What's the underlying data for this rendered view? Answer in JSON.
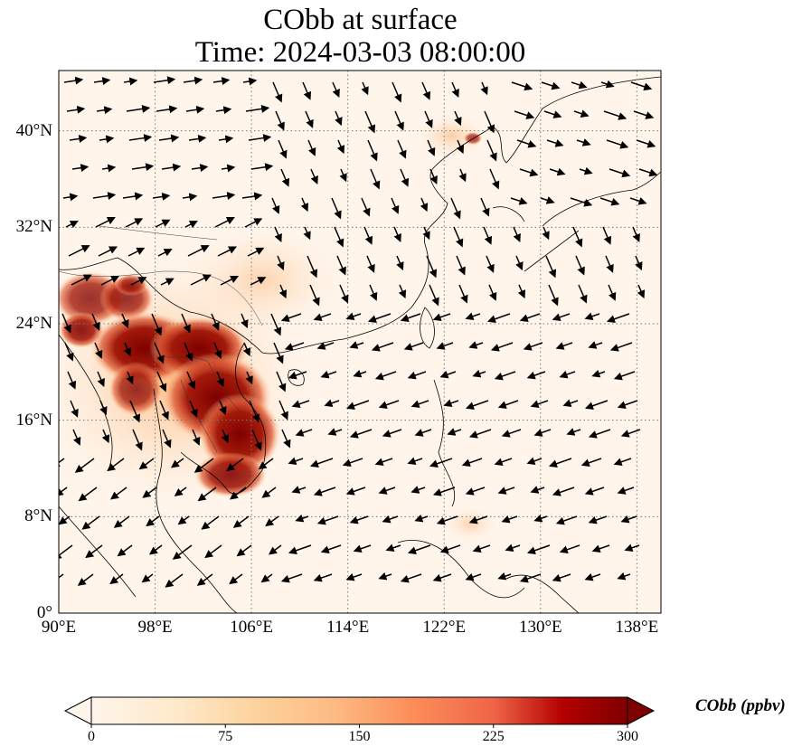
{
  "title": {
    "line1": "CObb at surface",
    "line2": "Time: 2024-03-03 08:00:00"
  },
  "map": {
    "lon_range": [
      90,
      140
    ],
    "lat_range": [
      0,
      45
    ],
    "gridlines": "dotted",
    "x_ticks": [
      {
        "value": 90,
        "label": "90°E"
      },
      {
        "value": 98,
        "label": "98°E"
      },
      {
        "value": 106,
        "label": "106°E"
      },
      {
        "value": 114,
        "label": "114°E"
      },
      {
        "value": 122,
        "label": "122°E"
      },
      {
        "value": 130,
        "label": "130°E"
      },
      {
        "value": 138,
        "label": "138°E"
      }
    ],
    "y_ticks": [
      {
        "value": 0,
        "label": "0°"
      },
      {
        "value": 8,
        "label": "8°N"
      },
      {
        "value": 16,
        "label": "16°N"
      },
      {
        "value": 24,
        "label": "24°N"
      },
      {
        "value": 32,
        "label": "32°N"
      },
      {
        "value": 40,
        "label": "40°N"
      }
    ],
    "field": "CObb surface concentration with wind vectors",
    "colormap": [
      "#fff5eb",
      "#fee6ce",
      "#fdd0a2",
      "#fdae6b",
      "#fd8d3c",
      "#f16913",
      "#d94801",
      "#a63603",
      "#7f2704"
    ]
  },
  "colorbar": {
    "label": "CObb (ppbv)",
    "min": 0,
    "max": 300,
    "extend": "both",
    "ticks": [
      {
        "value": 0,
        "label": "0"
      },
      {
        "value": 75,
        "label": "75"
      },
      {
        "value": 150,
        "label": "150"
      },
      {
        "value": 225,
        "label": "225"
      },
      {
        "value": 300,
        "label": "300"
      }
    ]
  }
}
